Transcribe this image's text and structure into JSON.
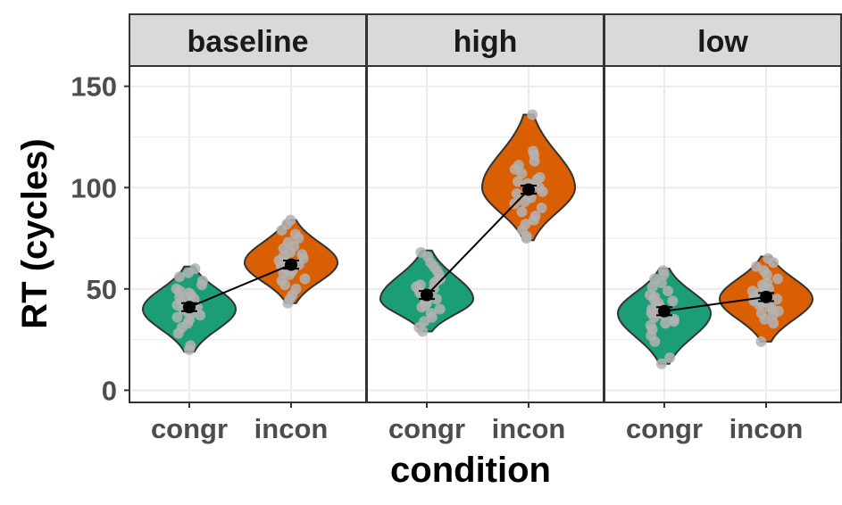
{
  "chart_data": {
    "type": "violin",
    "xlabel": "condition",
    "ylabel": "RT (cycles)",
    "ylim": [
      -6,
      160
    ],
    "yticks": [
      0,
      50,
      100,
      150
    ],
    "categories": [
      "congr",
      "incon"
    ],
    "colors": {
      "congr": "#1b9e77",
      "incon": "#d95f02",
      "points": "#b3b3b3",
      "mean": "#000000"
    },
    "grid": true,
    "panels": [
      {
        "label": "baseline",
        "groups": [
          {
            "category": "congr",
            "mean": 41,
            "se": 2,
            "violin": {
              "min": 19,
              "max": 61,
              "mode": 40
            },
            "points": [
              20,
              22,
              28,
              31,
              33,
              35,
              36,
              37,
              38,
              39,
              40,
              41,
              41,
              42,
              43,
              44,
              45,
              46,
              47,
              48,
              49,
              50,
              52,
              54,
              56,
              58,
              60
            ]
          },
          {
            "category": "incon",
            "mean": 62,
            "se": 2,
            "violin": {
              "min": 43,
              "max": 84,
              "mode": 63
            },
            "points": [
              43,
              45,
              47,
              50,
              52,
              54,
              55,
              57,
              58,
              59,
              60,
              61,
              62,
              63,
              63,
              64,
              65,
              66,
              67,
              68,
              70,
              71,
              73,
              75,
              77,
              79,
              82,
              84
            ]
          }
        ]
      },
      {
        "label": "high",
        "groups": [
          {
            "category": "congr",
            "mean": 47,
            "se": 2,
            "violin": {
              "min": 29,
              "max": 69,
              "mode": 45
            },
            "points": [
              29,
              31,
              34,
              36,
              38,
              40,
              41,
              42,
              43,
              44,
              45,
              46,
              47,
              48,
              49,
              50,
              51,
              52,
              53,
              54,
              55,
              57,
              59,
              61,
              63,
              66,
              68
            ]
          },
          {
            "category": "incon",
            "mean": 99,
            "se": 2,
            "violin": {
              "min": 74,
              "max": 136,
              "mode": 100
            },
            "points": [
              75,
              76,
              79,
              82,
              84,
              86,
              88,
              90,
              92,
              93,
              95,
              96,
              97,
              98,
              99,
              100,
              101,
              102,
              103,
              104,
              105,
              107,
              109,
              111,
              113,
              116,
              118,
              136
            ]
          }
        ]
      },
      {
        "label": "low",
        "groups": [
          {
            "category": "congr",
            "mean": 39,
            "se": 2,
            "violin": {
              "min": 13,
              "max": 60,
              "mode": 38
            },
            "points": [
              13,
              16,
              24,
              27,
              30,
              32,
              33,
              34,
              35,
              36,
              37,
              38,
              38,
              39,
              40,
              41,
              42,
              43,
              44,
              45,
              46,
              47,
              49,
              51,
              53,
              55,
              57,
              59
            ]
          },
          {
            "category": "incon",
            "mean": 46,
            "se": 2,
            "violin": {
              "min": 24,
              "max": 66,
              "mode": 45
            },
            "points": [
              24,
              33,
              35,
              37,
              38,
              39,
              40,
              41,
              42,
              43,
              44,
              45,
              45,
              46,
              47,
              48,
              49,
              50,
              51,
              52,
              53,
              55,
              57,
              59,
              61,
              63,
              65
            ]
          }
        ]
      }
    ]
  }
}
